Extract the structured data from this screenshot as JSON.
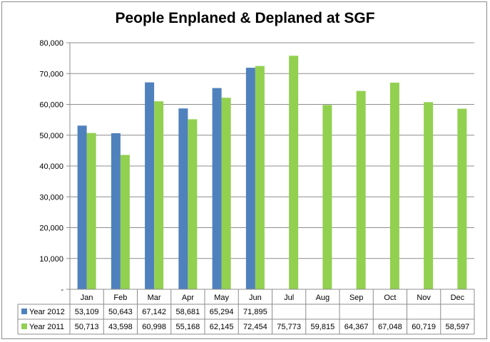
{
  "chart_data": {
    "type": "bar",
    "title": "People Enplaned & Deplaned at SGF",
    "categories": [
      "Jan",
      "Feb",
      "Mar",
      "Apr",
      "May",
      "Jun",
      "Jul",
      "Aug",
      "Sep",
      "Oct",
      "Nov",
      "Dec"
    ],
    "series": [
      {
        "name": "Year 2012",
        "color": "#4f81bd",
        "values": [
          53109,
          50643,
          67142,
          58681,
          65294,
          71895,
          null,
          null,
          null,
          null,
          null,
          null
        ],
        "labels": [
          "53,109",
          "50,643",
          "67,142",
          "58,681",
          "65,294",
          "71,895",
          "",
          "",
          "",
          "",
          "",
          ""
        ]
      },
      {
        "name": "Year 2011",
        "color": "#92d050",
        "values": [
          50713,
          43598,
          60998,
          55168,
          62145,
          72454,
          75773,
          59815,
          64367,
          67048,
          60719,
          58597
        ],
        "labels": [
          "50,713",
          "43,598",
          "60,998",
          "55,168",
          "62,145",
          "72,454",
          "75,773",
          "59,815",
          "64,367",
          "67,048",
          "60,719",
          "58,597"
        ]
      }
    ],
    "ylim": [
      0,
      80000
    ],
    "yticks": [
      0,
      10000,
      20000,
      30000,
      40000,
      50000,
      60000,
      70000,
      80000
    ],
    "ytick_labels": [
      "-",
      "10,000",
      "20,000",
      "30,000",
      "40,000",
      "50,000",
      "60,000",
      "70,000",
      "80,000"
    ],
    "grid": true,
    "legend": "data-table"
  }
}
